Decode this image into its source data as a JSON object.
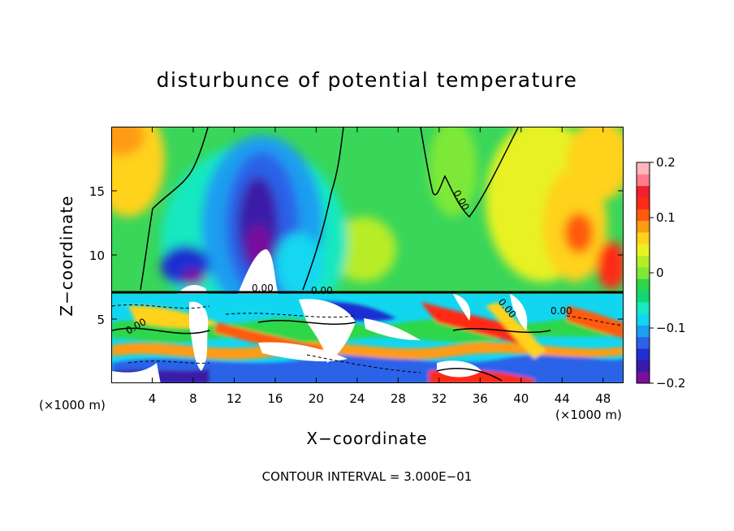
{
  "chart_data": {
    "type": "heatmap",
    "title": "disturbunce of potential temperature",
    "xlabel": "X−coordinate",
    "ylabel": "Z−coordinate",
    "x_unit_label": "(×1000 m)",
    "x_ticks": [
      4,
      8,
      12,
      16,
      20,
      24,
      28,
      32,
      36,
      40,
      44,
      48
    ],
    "y_ticks": [
      5,
      10,
      15
    ],
    "xlim": [
      0,
      50
    ],
    "ylim": [
      0,
      20
    ],
    "colorbar": {
      "ticks": [
        "0.2",
        "0.1",
        "0",
        "−0.1",
        "−0.2"
      ],
      "range": [
        -0.2,
        0.2
      ],
      "colors": [
        "#7b0e9e",
        "#3a1aa8",
        "#1f2fd0",
        "#2b62e8",
        "#1e9ef0",
        "#12d6f0",
        "#19e8c0",
        "#12d873",
        "#2ed64a",
        "#7ee838",
        "#b8ec26",
        "#e8f220",
        "#ffd21e",
        "#ff9b12",
        "#ff5a10",
        "#ff2a18",
        "#f02030",
        "#ff7c8a",
        "#ffb6bc"
      ]
    },
    "contour_label": "0.00",
    "contour_interval_text": "CONTOUR INTERVAL = 3.000E−01"
  }
}
